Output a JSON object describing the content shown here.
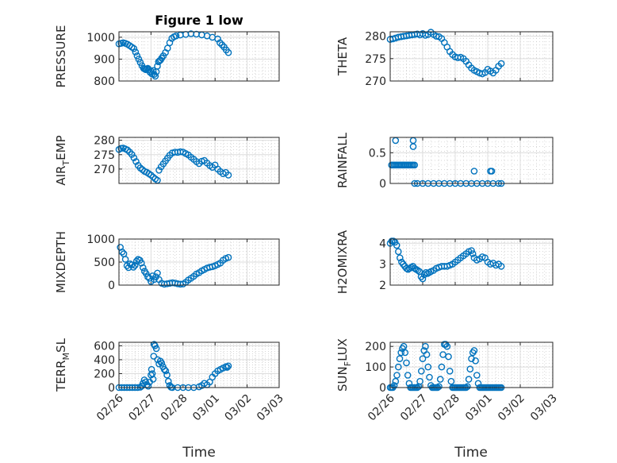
{
  "figure": {
    "title": "Figure 1 low",
    "xlabel": "Time"
  },
  "chart_data": [
    {
      "type": "scatter",
      "panel": "pressure",
      "ylabel_main": "PRESSURE",
      "ylabel_sub": "",
      "ylabel_rest": "",
      "yticks": [
        "800",
        "900",
        "1000"
      ],
      "ylim": [
        800,
        1025
      ],
      "xticks": [
        "02/26",
        "02/27",
        "02/28",
        "03/01",
        "03/02",
        "03/03"
      ],
      "xlim": [
        0,
        6
      ],
      "x": [
        0.0,
        0.08,
        0.16,
        0.24,
        0.32,
        0.4,
        0.48,
        0.56,
        0.62,
        0.68,
        0.74,
        0.8,
        0.86,
        0.92,
        0.96,
        1.0,
        1.04,
        1.08,
        1.12,
        1.16,
        1.2,
        1.24,
        1.28,
        1.32,
        1.36,
        1.4,
        1.44,
        1.48,
        1.52,
        1.56,
        1.6,
        1.66,
        1.74,
        1.82,
        1.9,
        1.98,
        2.06,
        2.14,
        2.3,
        2.5,
        2.7,
        2.9,
        3.1,
        3.3,
        3.5,
        3.7,
        3.78,
        3.86,
        3.94,
        4.02,
        4.1
      ],
      "values": [
        970,
        972,
        975,
        972,
        968,
        962,
        955,
        948,
        932,
        915,
        900,
        885,
        870,
        858,
        855,
        852,
        855,
        858,
        852,
        840,
        845,
        832,
        848,
        830,
        822,
        842,
        868,
        888,
        892,
        896,
        905,
        915,
        930,
        950,
        975,
        995,
        1002,
        1006,
        1010,
        1013,
        1016,
        1014,
        1011,
        1006,
        1000,
        992,
        975,
        965,
        955,
        942,
        930
      ]
    },
    {
      "type": "scatter",
      "panel": "theta",
      "ylabel_main": "THETA",
      "ylabel_sub": "",
      "ylabel_rest": "",
      "yticks": [
        "270",
        "275",
        "280"
      ],
      "ylim": [
        270,
        281
      ],
      "xticks": [
        "02/26",
        "02/27",
        "02/28",
        "03/01",
        "03/02",
        "03/03"
      ],
      "xlim": [
        0,
        6
      ],
      "x": [
        0.0,
        0.1,
        0.2,
        0.3,
        0.4,
        0.5,
        0.6,
        0.7,
        0.8,
        0.9,
        1.0,
        1.1,
        1.2,
        1.3,
        1.4,
        1.5,
        1.6,
        1.7,
        1.8,
        1.9,
        2.0,
        2.1,
        2.2,
        2.3,
        2.4,
        2.5,
        2.6,
        2.7,
        2.8,
        2.9,
        3.0,
        3.1,
        3.2,
        3.3,
        3.4,
        3.5,
        3.6,
        3.7,
        3.8,
        3.9,
        4.0,
        4.1
      ],
      "values": [
        279.3,
        279.4,
        279.6,
        279.8,
        279.9,
        280.0,
        280.1,
        280.2,
        280.3,
        280.4,
        280.5,
        280.3,
        280.6,
        280.2,
        280.4,
        280.9,
        280.4,
        280.0,
        279.9,
        279.5,
        278.6,
        277.6,
        276.6,
        275.9,
        275.4,
        275.2,
        275.3,
        275.0,
        274.4,
        273.6,
        272.9,
        272.4,
        272.1,
        271.8,
        271.6,
        271.9,
        272.6,
        272.2,
        271.8,
        272.4,
        273.3,
        273.9
      ]
    },
    {
      "type": "scatter",
      "panel": "air_temp",
      "ylabel_main": "AIR",
      "ylabel_sub": "T",
      "ylabel_rest": "EMP",
      "yticks": [
        "270",
        "275",
        "280"
      ],
      "ylim": [
        265,
        281
      ],
      "xticks": [
        "02/26",
        "02/27",
        "02/28",
        "03/01",
        "03/02",
        "03/03"
      ],
      "xlim": [
        0,
        6
      ],
      "x": [
        0.0,
        0.08,
        0.16,
        0.24,
        0.32,
        0.4,
        0.48,
        0.56,
        0.64,
        0.72,
        0.8,
        0.88,
        0.96,
        1.04,
        1.12,
        1.2,
        1.28,
        1.36,
        1.44,
        1.5,
        1.58,
        1.66,
        1.74,
        1.82,
        1.9,
        2.0,
        2.1,
        2.2,
        2.3,
        2.4,
        2.5,
        2.6,
        2.7,
        2.8,
        2.9,
        3.0,
        3.1,
        3.2,
        3.3,
        3.4,
        3.5,
        3.6,
        3.7,
        3.8,
        3.9,
        4.0,
        4.1
      ],
      "values": [
        276.8,
        277.2,
        277.3,
        277.0,
        276.6,
        275.9,
        275.1,
        273.9,
        272.6,
        271.3,
        270.4,
        269.8,
        269.2,
        268.9,
        268.4,
        267.9,
        267.2,
        266.6,
        266.1,
        269.6,
        270.8,
        271.8,
        272.8,
        273.8,
        274.8,
        275.6,
        275.9,
        275.8,
        276.0,
        275.9,
        275.4,
        274.9,
        274.1,
        273.4,
        272.6,
        271.9,
        272.7,
        273.0,
        272.1,
        271.2,
        270.6,
        271.4,
        270.0,
        269.1,
        268.4,
        268.8,
        267.9
      ]
    },
    {
      "type": "scatter",
      "panel": "rainfall",
      "ylabel_main": "RAINFALL",
      "ylabel_sub": "",
      "ylabel_rest": "",
      "yticks": [
        "0",
        "0.5"
      ],
      "ylim": [
        0,
        0.75
      ],
      "xticks": [
        "02/26",
        "02/27",
        "02/28",
        "03/01",
        "03/02",
        "03/03"
      ],
      "xlim": [
        0,
        6
      ],
      "x": [
        0.05,
        0.1,
        0.15,
        0.2,
        0.25,
        0.3,
        0.35,
        0.4,
        0.45,
        0.5,
        0.55,
        0.6,
        0.65,
        0.7,
        0.75,
        0.8,
        0.85,
        0.9,
        0.2,
        0.85,
        0.85,
        0.9,
        1.0,
        1.2,
        1.4,
        1.6,
        1.8,
        2.0,
        2.2,
        2.4,
        2.6,
        2.8,
        3.0,
        3.2,
        3.4,
        3.6,
        3.8,
        4.0,
        4.1,
        3.1,
        3.7,
        3.75
      ],
      "values": [
        0.3,
        0.3,
        0.3,
        0.3,
        0.3,
        0.3,
        0.3,
        0.3,
        0.3,
        0.3,
        0.3,
        0.3,
        0.3,
        0.3,
        0.3,
        0.3,
        0.3,
        0.3,
        0.7,
        0.6,
        0.7,
        0.0,
        0.0,
        0.0,
        0.0,
        0.0,
        0.0,
        0.0,
        0.0,
        0.0,
        0.0,
        0.0,
        0.0,
        0.0,
        0.0,
        0.0,
        0.0,
        0.0,
        0.0,
        0.2,
        0.2,
        0.2
      ]
    },
    {
      "type": "scatter",
      "panel": "mixdepth",
      "ylabel_main": "MIXDEPTH",
      "ylabel_sub": "",
      "ylabel_rest": "",
      "yticks": [
        "0",
        "500",
        "1000"
      ],
      "ylim": [
        0,
        1000
      ],
      "xticks": [
        "02/26",
        "02/27",
        "02/28",
        "03/01",
        "03/02",
        "03/03"
      ],
      "xlim": [
        0,
        6
      ],
      "x": [
        0.05,
        0.12,
        0.18,
        0.24,
        0.3,
        0.36,
        0.42,
        0.48,
        0.54,
        0.6,
        0.66,
        0.72,
        0.78,
        0.84,
        0.9,
        0.96,
        1.02,
        1.08,
        1.14,
        1.2,
        1.26,
        1.32,
        1.38,
        1.44,
        1.5,
        1.6,
        1.7,
        1.8,
        1.9,
        2.0,
        2.1,
        2.2,
        2.3,
        2.4,
        2.5,
        2.6,
        2.7,
        2.8,
        2.9,
        3.0,
        3.1,
        3.2,
        3.3,
        3.4,
        3.5,
        3.6,
        3.7,
        3.8,
        3.9,
        4.0,
        4.1
      ],
      "values": [
        820,
        720,
        680,
        560,
        420,
        380,
        460,
        440,
        390,
        430,
        520,
        560,
        540,
        480,
        380,
        300,
        250,
        180,
        150,
        80,
        200,
        120,
        180,
        260,
        120,
        40,
        20,
        30,
        40,
        50,
        45,
        30,
        20,
        25,
        60,
        110,
        150,
        190,
        240,
        270,
        310,
        340,
        370,
        390,
        400,
        420,
        450,
        480,
        540,
        580,
        600
      ]
    },
    {
      "type": "scatter",
      "panel": "h2omixra",
      "ylabel_main": "H2OMIXRA",
      "ylabel_sub": "",
      "ylabel_rest": "",
      "yticks": [
        "2",
        "3",
        "4"
      ],
      "ylim": [
        2,
        4.2
      ],
      "xticks": [
        "02/26",
        "02/27",
        "02/28",
        "03/01",
        "03/02",
        "03/03"
      ],
      "xlim": [
        0,
        6
      ],
      "x": [
        0.0,
        0.06,
        0.12,
        0.18,
        0.24,
        0.3,
        0.36,
        0.42,
        0.48,
        0.54,
        0.6,
        0.66,
        0.72,
        0.78,
        0.84,
        0.9,
        0.96,
        1.02,
        1.08,
        1.14,
        1.2,
        1.26,
        1.32,
        1.38,
        1.44,
        1.5,
        1.6,
        1.7,
        1.8,
        1.9,
        2.0,
        2.1,
        2.2,
        2.3,
        2.4,
        2.5,
        2.6,
        2.7,
        2.8,
        2.9,
        3.0,
        3.05,
        3.1,
        3.2,
        3.3,
        3.4,
        3.5,
        3.6,
        3.7,
        3.8,
        3.9,
        4.0,
        4.1
      ],
      "values": [
        4.0,
        4.1,
        4.1,
        4.05,
        3.9,
        3.6,
        3.3,
        3.1,
        3.0,
        2.9,
        2.8,
        2.75,
        2.8,
        2.85,
        2.9,
        2.8,
        2.75,
        2.7,
        2.65,
        2.4,
        2.3,
        2.5,
        2.6,
        2.55,
        2.6,
        2.65,
        2.7,
        2.8,
        2.85,
        2.9,
        2.9,
        2.9,
        2.95,
        3.0,
        3.1,
        3.2,
        3.3,
        3.4,
        3.5,
        3.6,
        3.65,
        3.5,
        3.3,
        3.2,
        3.25,
        3.35,
        3.3,
        3.1,
        3.0,
        3.05,
        2.95,
        3.0,
        2.9
      ]
    },
    {
      "type": "scatter",
      "panel": "terr_msl",
      "ylabel_main": "TERR",
      "ylabel_sub": "M",
      "ylabel_rest": "SL",
      "yticks": [
        "0",
        "200",
        "400",
        "600"
      ],
      "ylim": [
        0,
        650
      ],
      "xticks": [
        "02/26",
        "02/27",
        "02/28",
        "03/01",
        "03/02",
        "03/03"
      ],
      "xlim": [
        0,
        6
      ],
      "x": [
        0.0,
        0.1,
        0.2,
        0.3,
        0.4,
        0.5,
        0.6,
        0.7,
        0.8,
        0.85,
        0.9,
        0.95,
        1.0,
        1.05,
        1.1,
        1.15,
        1.2,
        1.22,
        1.25,
        1.28,
        1.3,
        1.32,
        1.35,
        1.4,
        1.45,
        1.5,
        1.55,
        1.6,
        1.65,
        1.7,
        1.75,
        1.8,
        1.85,
        1.9,
        1.95,
        2.0,
        2.2,
        2.4,
        2.6,
        2.8,
        3.0,
        3.1,
        3.2,
        3.3,
        3.4,
        3.5,
        3.6,
        3.7,
        3.8,
        3.9,
        4.0,
        4.05,
        4.1
      ],
      "values": [
        0,
        0,
        0,
        0,
        0,
        0,
        0,
        0,
        5,
        20,
        60,
        110,
        80,
        40,
        20,
        80,
        180,
        260,
        200,
        120,
        450,
        620,
        600,
        560,
        400,
        340,
        380,
        350,
        300,
        260,
        240,
        180,
        90,
        30,
        5,
        0,
        0,
        0,
        0,
        0,
        10,
        30,
        60,
        40,
        80,
        150,
        200,
        240,
        260,
        280,
        300,
        290,
        310
      ]
    },
    {
      "type": "scatter",
      "panel": "sun_flux",
      "ylabel_main": "SUN",
      "ylabel_sub": "F",
      "ylabel_rest": "LUX",
      "yticks": [
        "0",
        "100",
        "200"
      ],
      "ylim": [
        0,
        220
      ],
      "xticks": [
        "02/26",
        "02/27",
        "02/28",
        "03/01",
        "03/02",
        "03/03"
      ],
      "xlim": [
        0,
        6
      ],
      "x": [
        0.0,
        0.05,
        0.1,
        0.15,
        0.2,
        0.25,
        0.3,
        0.35,
        0.4,
        0.45,
        0.5,
        0.55,
        0.6,
        0.65,
        0.7,
        0.75,
        0.8,
        0.85,
        0.9,
        0.95,
        1.0,
        1.05,
        1.1,
        1.15,
        1.2,
        1.25,
        1.3,
        1.35,
        1.4,
        1.45,
        1.5,
        1.55,
        1.6,
        1.65,
        1.7,
        1.75,
        1.8,
        1.85,
        1.9,
        1.95,
        2.0,
        2.05,
        2.1,
        2.15,
        2.2,
        2.25,
        2.3,
        2.35,
        2.4,
        2.45,
        2.5,
        2.55,
        2.6,
        2.65,
        2.7,
        2.75,
        2.8,
        2.85,
        2.9,
        2.95,
        3.0,
        3.05,
        3.1,
        3.15,
        3.2,
        3.25,
        3.3,
        3.35,
        3.4,
        3.45,
        3.5,
        3.55,
        3.6,
        3.65,
        3.7,
        3.75,
        3.8,
        3.85,
        3.9,
        3.95,
        4.0,
        4.05,
        4.1
      ],
      "values": [
        0,
        0,
        0,
        10,
        30,
        60,
        100,
        140,
        170,
        190,
        200,
        170,
        120,
        60,
        20,
        0,
        0,
        0,
        0,
        0,
        0,
        5,
        30,
        80,
        140,
        180,
        200,
        160,
        100,
        50,
        10,
        0,
        0,
        0,
        0,
        0,
        5,
        40,
        100,
        160,
        210,
        210,
        200,
        150,
        80,
        30,
        0,
        0,
        0,
        0,
        0,
        0,
        0,
        0,
        0,
        0,
        0,
        5,
        40,
        90,
        140,
        170,
        180,
        130,
        60,
        20,
        0,
        0,
        0,
        0,
        0,
        0,
        0,
        0,
        0,
        0,
        0,
        0,
        0,
        0,
        0,
        0,
        0
      ]
    }
  ]
}
